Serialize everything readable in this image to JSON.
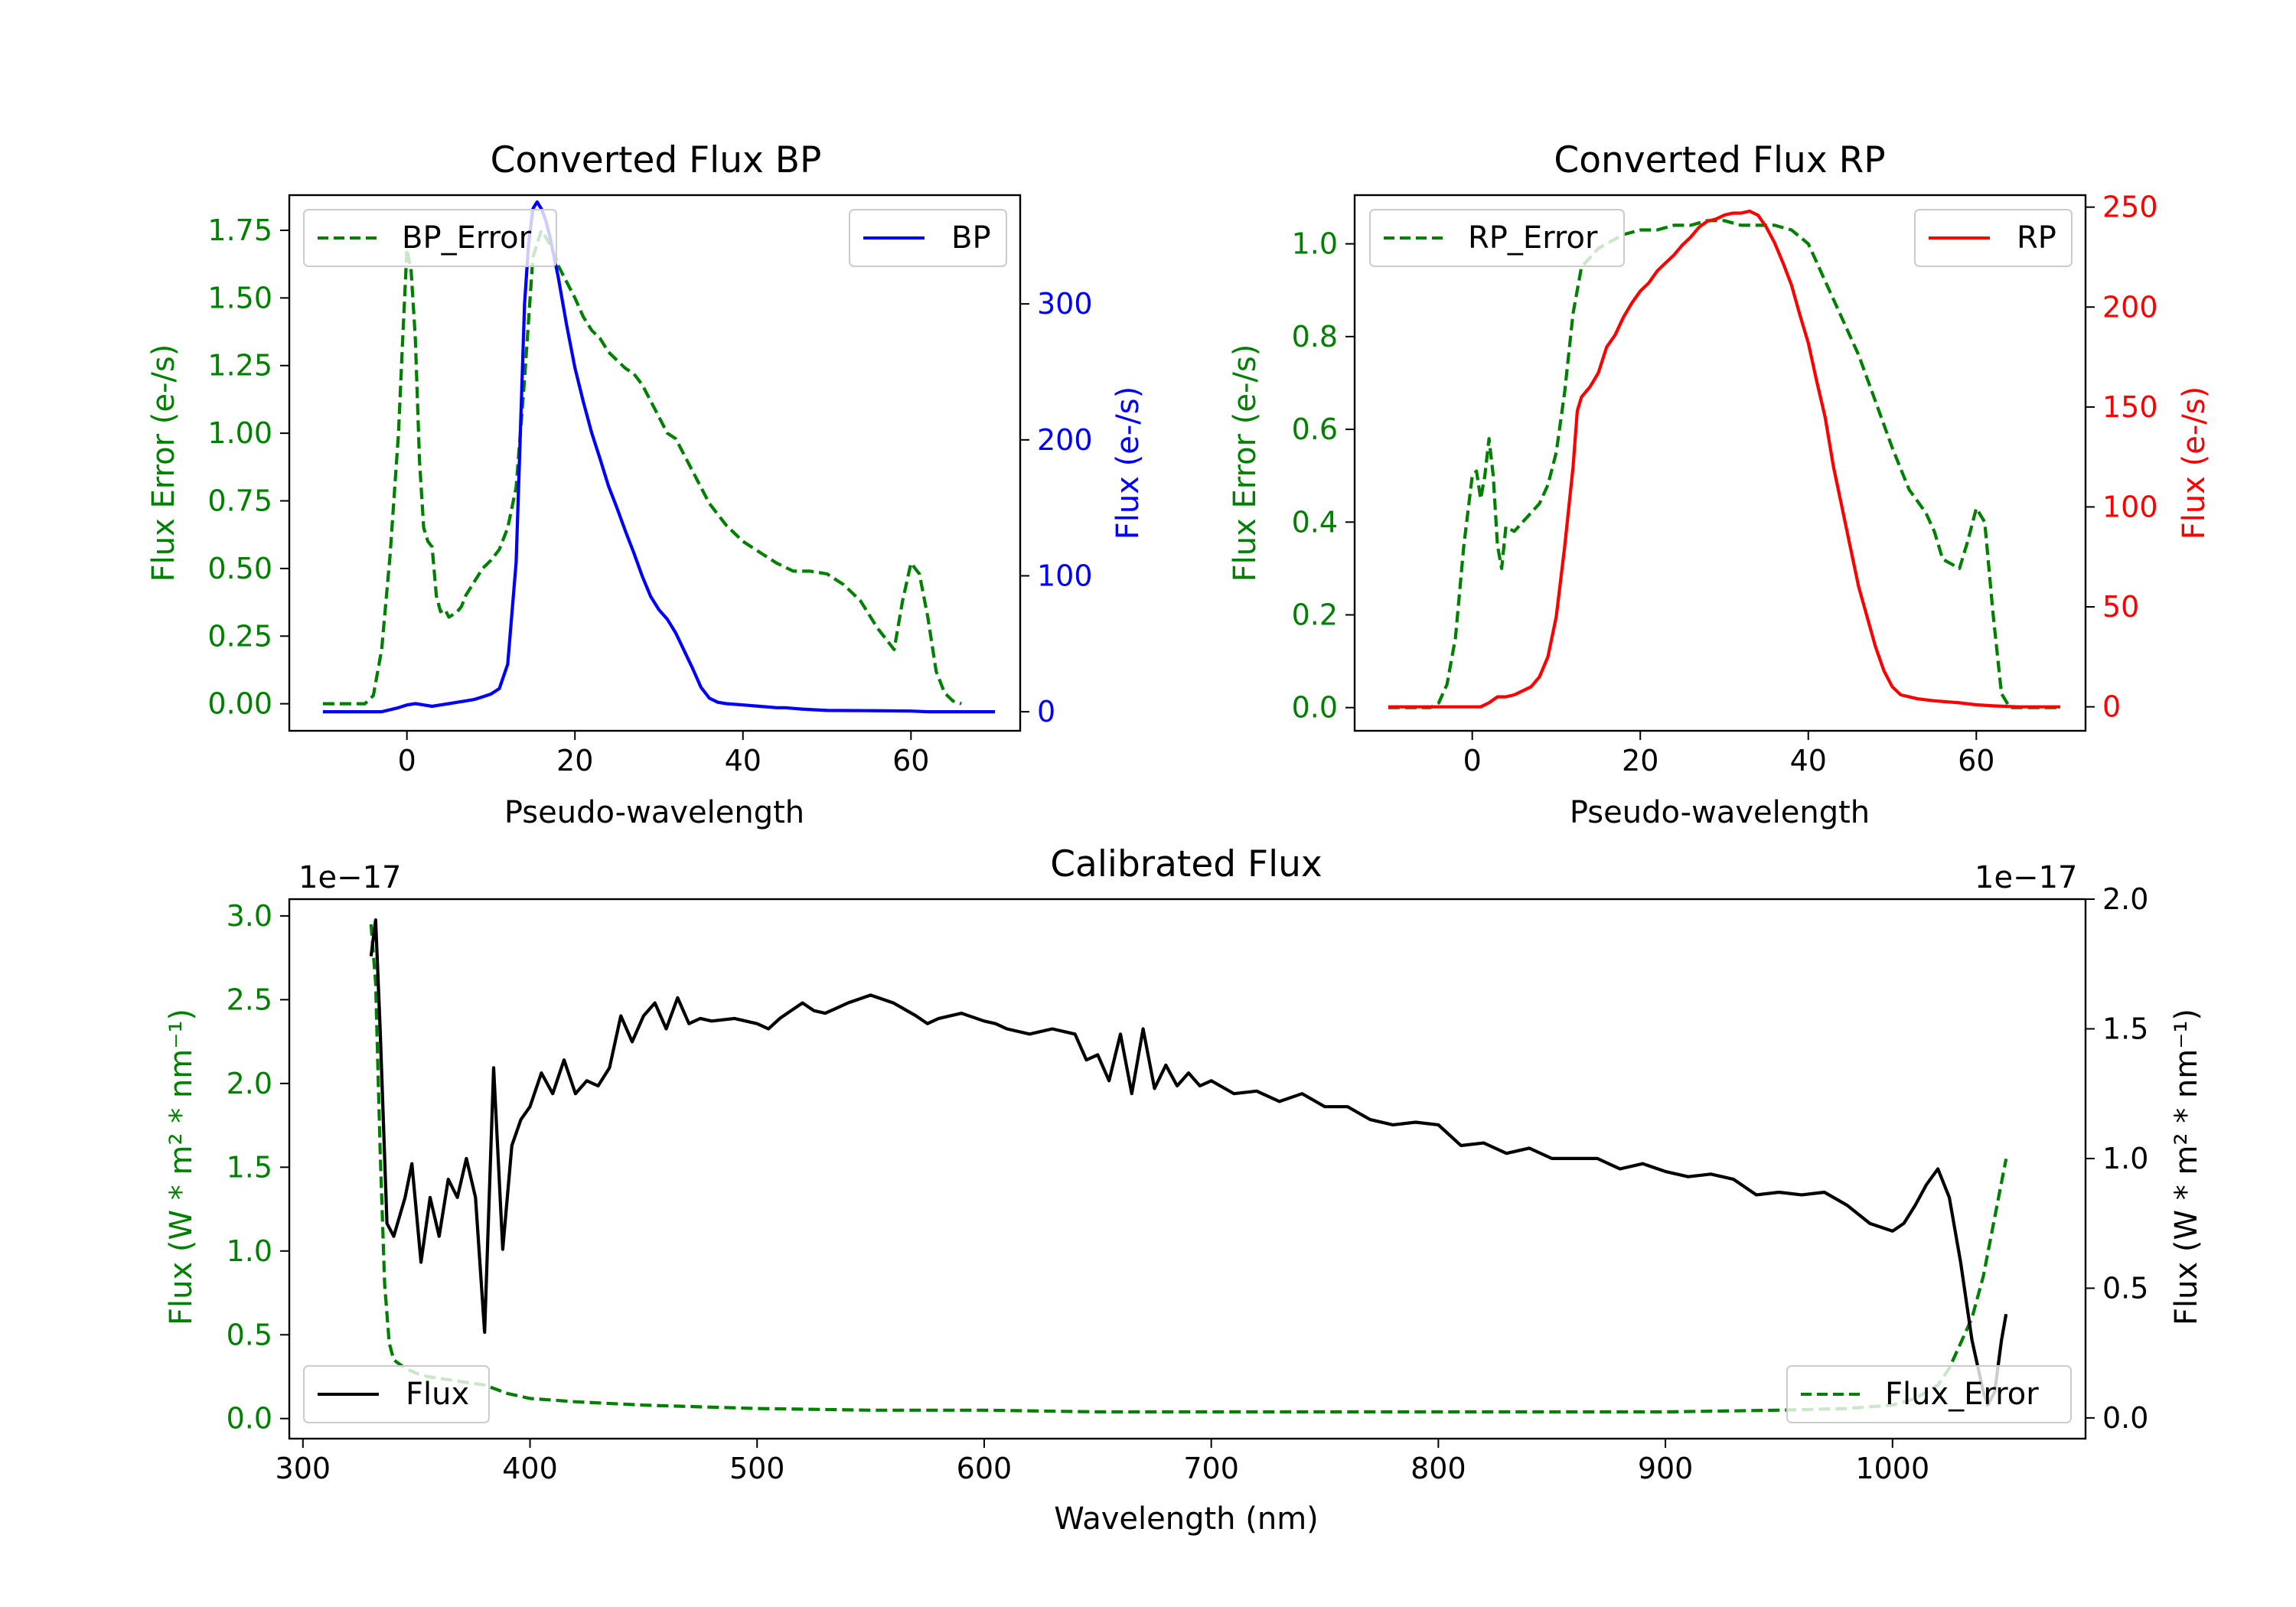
{
  "figure": {
    "type": "matplotlib-figure",
    "panel_count": 3
  },
  "chart_data": [
    {
      "id": "bp",
      "type": "line",
      "title": "Converted Flux BP",
      "xlabel": "Pseudo-wavelength",
      "ylabel_left": "Flux Error (e-/s)",
      "ylabel_right": "Flux (e-/s)",
      "xlim": [
        -14,
        73
      ],
      "ylim_left": [
        -0.1,
        1.88
      ],
      "ylim_right": [
        -14,
        380
      ],
      "xticks": [
        0,
        20,
        40,
        60
      ],
      "xtick_labels": [
        "0",
        "20",
        "40",
        "60"
      ],
      "yticks_left": [
        0,
        0.25,
        0.5,
        0.75,
        1.0,
        1.25,
        1.5,
        1.75
      ],
      "ytick_labels_left": [
        "0.00",
        "0.25",
        "0.50",
        "0.75",
        "1.00",
        "1.25",
        "1.50",
        "1.75"
      ],
      "yticks_right": [
        0,
        100,
        200,
        300
      ],
      "ytick_labels_right": [
        "0",
        "100",
        "200",
        "300"
      ],
      "left_color": "#008000",
      "right_color": "#0000ff",
      "series": [
        {
          "name": "BP_Error",
          "axis": "left",
          "color": "#008000",
          "style": "dashed",
          "legend_loc": "upper-left",
          "x": [
            -10,
            -5,
            -4,
            -3,
            -2,
            -1,
            -0.5,
            0,
            0.5,
            1,
            1.5,
            2,
            2.5,
            3,
            3.5,
            4,
            4.5,
            5,
            5.5,
            6,
            6.5,
            7,
            8,
            9,
            10,
            11,
            12,
            13,
            14,
            15,
            16,
            17,
            18,
            19,
            20,
            21,
            22,
            23,
            24,
            25,
            26,
            27,
            28,
            29,
            30,
            31,
            32,
            33,
            34,
            35,
            36,
            38,
            40,
            42,
            44,
            46,
            48,
            50,
            52,
            54,
            56,
            57,
            58,
            59,
            60,
            61,
            62,
            63,
            64,
            65,
            66
          ],
          "values": [
            0,
            0,
            0.03,
            0.2,
            0.55,
            1.0,
            1.35,
            1.68,
            1.6,
            1.35,
            0.9,
            0.65,
            0.6,
            0.58,
            0.4,
            0.34,
            0.35,
            0.32,
            0.33,
            0.34,
            0.36,
            0.4,
            0.45,
            0.5,
            0.53,
            0.57,
            0.65,
            0.8,
            1.2,
            1.65,
            1.75,
            1.7,
            1.62,
            1.56,
            1.5,
            1.43,
            1.38,
            1.35,
            1.3,
            1.27,
            1.24,
            1.22,
            1.18,
            1.12,
            1.06,
            1.0,
            0.98,
            0.92,
            0.86,
            0.8,
            0.74,
            0.66,
            0.6,
            0.56,
            0.52,
            0.49,
            0.49,
            0.48,
            0.44,
            0.38,
            0.28,
            0.24,
            0.2,
            0.38,
            0.52,
            0.48,
            0.32,
            0.12,
            0.04,
            0.01,
            0
          ]
        },
        {
          "name": "BP",
          "axis": "right",
          "color": "#0000ff",
          "style": "solid",
          "legend_loc": "upper-right",
          "x": [
            -10,
            -6,
            -3,
            -1,
            0,
            1,
            2,
            3,
            4,
            5,
            6,
            7,
            8,
            9,
            10,
            11,
            12,
            13,
            14,
            14.5,
            15,
            15.5,
            16,
            16.5,
            17,
            18,
            19,
            20,
            21,
            22,
            23,
            24,
            25,
            26,
            27,
            28,
            29,
            30,
            31,
            32,
            33,
            34,
            35,
            36,
            37,
            38,
            40,
            42,
            44,
            45,
            47,
            50,
            55,
            60,
            62,
            65,
            70
          ],
          "values": [
            0,
            0,
            0,
            3,
            5,
            6,
            5,
            4,
            5,
            6,
            7,
            8,
            9,
            11,
            13,
            17,
            35,
            110,
            300,
            345,
            370,
            375,
            370,
            362,
            350,
            320,
            285,
            253,
            228,
            205,
            186,
            166,
            150,
            133,
            117,
            100,
            85,
            75,
            68,
            58,
            45,
            32,
            18,
            10,
            7,
            6,
            5,
            4,
            3,
            3,
            2,
            1,
            0.8,
            0.5,
            0,
            0,
            0
          ]
        }
      ]
    },
    {
      "id": "rp",
      "type": "line",
      "title": "Converted Flux RP",
      "xlabel": "Pseudo-wavelength",
      "ylabel_left": "Flux Error (e-/s)",
      "ylabel_right": "Flux (e-/s)",
      "xlim": [
        -14,
        73
      ],
      "ylim_left": [
        -0.05,
        1.105
      ],
      "ylim_right": [
        -12,
        256
      ],
      "xticks": [
        0,
        20,
        40,
        60
      ],
      "xtick_labels": [
        "0",
        "20",
        "40",
        "60"
      ],
      "yticks_left": [
        0,
        0.2,
        0.4,
        0.6,
        0.8,
        1.0
      ],
      "ytick_labels_left": [
        "0.0",
        "0.2",
        "0.4",
        "0.6",
        "0.8",
        "1.0"
      ],
      "yticks_right": [
        0,
        50,
        100,
        150,
        200,
        250
      ],
      "ytick_labels_right": [
        "0",
        "50",
        "100",
        "150",
        "200",
        "250"
      ],
      "left_color": "#008000",
      "right_color": "#ff0000",
      "series": [
        {
          "name": "RP_Error",
          "axis": "left",
          "color": "#008000",
          "style": "dashed",
          "legend_loc": "upper-left",
          "x": [
            -10,
            -5,
            -4,
            -3,
            -2,
            -1,
            0,
            0.5,
            1,
            1.5,
            2,
            2.5,
            3,
            3.5,
            4,
            5,
            6,
            7,
            8,
            9,
            10,
            11,
            12,
            13,
            14,
            15,
            16,
            18,
            20,
            22,
            24,
            26,
            28,
            30,
            32,
            34,
            36,
            38,
            40,
            42,
            44,
            46,
            48,
            50,
            52,
            54,
            55,
            56,
            57,
            58,
            59,
            60,
            61,
            62,
            63,
            64,
            65,
            70
          ],
          "values": [
            0,
            0,
            0.01,
            0.05,
            0.15,
            0.35,
            0.5,
            0.51,
            0.45,
            0.5,
            0.58,
            0.5,
            0.35,
            0.3,
            0.39,
            0.38,
            0.4,
            0.42,
            0.44,
            0.48,
            0.55,
            0.68,
            0.85,
            0.95,
            0.97,
            0.99,
            1.0,
            1.02,
            1.03,
            1.03,
            1.04,
            1.04,
            1.05,
            1.05,
            1.04,
            1.04,
            1.04,
            1.03,
            1.0,
            0.92,
            0.84,
            0.76,
            0.66,
            0.56,
            0.47,
            0.42,
            0.38,
            0.32,
            0.31,
            0.3,
            0.36,
            0.43,
            0.4,
            0.2,
            0.03,
            0,
            0,
            0
          ]
        },
        {
          "name": "RP",
          "axis": "right",
          "color": "#ff0000",
          "style": "solid",
          "legend_loc": "upper-right",
          "x": [
            -10,
            -5,
            0,
            1,
            2,
            3,
            4,
            5,
            6,
            7,
            8,
            9,
            10,
            11,
            12,
            12.5,
            13,
            14,
            15,
            16,
            17,
            18,
            19,
            20,
            21,
            22,
            23,
            24,
            25,
            26,
            27,
            28,
            29,
            30,
            31,
            32,
            33,
            34,
            35,
            36,
            37,
            38,
            39,
            40,
            41,
            42,
            43,
            44,
            45,
            46,
            47,
            48,
            49,
            50,
            51,
            52,
            53,
            55,
            58,
            60,
            62,
            65,
            70
          ],
          "values": [
            0,
            0,
            0,
            0,
            2,
            5,
            5,
            6,
            8,
            10,
            15,
            25,
            45,
            80,
            120,
            148,
            155,
            160,
            167,
            180,
            186,
            195,
            202,
            208,
            212,
            218,
            222,
            226,
            231,
            235,
            240,
            243,
            244,
            246,
            247,
            247,
            248,
            246,
            240,
            232,
            222,
            211,
            196,
            182,
            163,
            145,
            120,
            100,
            80,
            60,
            45,
            30,
            18,
            10,
            6,
            5,
            4,
            3,
            2,
            1,
            0.5,
            0,
            0
          ]
        }
      ]
    },
    {
      "id": "calibrated",
      "type": "line",
      "title": "Calibrated Flux",
      "xlabel": "Wavelength (nm)",
      "ylabel_left": "Flux (W * m² * nm⁻¹)",
      "ylabel_right": "Flux (W * m² * nm⁻¹)",
      "offset_left": "1e−17",
      "offset_right": "1e−17",
      "xlim": [
        294,
        1085
      ],
      "ylim_left": [
        -0.12,
        3.1
      ],
      "ylim_right": [
        -0.08,
        2.0
      ],
      "xticks": [
        300,
        400,
        500,
        600,
        700,
        800,
        900,
        1000
      ],
      "xtick_labels": [
        "300",
        "400",
        "500",
        "600",
        "700",
        "800",
        "900",
        "1000"
      ],
      "yticks_left": [
        0,
        0.5,
        1.0,
        1.5,
        2.0,
        2.5,
        3.0
      ],
      "ytick_labels_left": [
        "0.0",
        "0.5",
        "1.0",
        "1.5",
        "2.0",
        "2.5",
        "3.0"
      ],
      "yticks_right": [
        0,
        0.5,
        1.0,
        1.5,
        2.0
      ],
      "ytick_labels_right": [
        "0.0",
        "0.5",
        "1.0",
        "1.5",
        "2.0"
      ],
      "left_color": "#008000",
      "right_color": "#000000",
      "series": [
        {
          "name": "Flux_Error",
          "axis": "left",
          "color": "#008000",
          "style": "dashed",
          "legend_loc": "lower-right",
          "x": [
            330,
            332,
            334,
            336,
            338,
            340,
            345,
            350,
            355,
            360,
            370,
            380,
            390,
            400,
            420,
            450,
            500,
            550,
            600,
            650,
            700,
            750,
            800,
            850,
            900,
            950,
            980,
            1000,
            1010,
            1020,
            1025,
            1030,
            1035,
            1040,
            1045,
            1050
          ],
          "values": [
            2.95,
            2.6,
            1.6,
            0.8,
            0.45,
            0.35,
            0.3,
            0.27,
            0.25,
            0.24,
            0.22,
            0.2,
            0.15,
            0.12,
            0.1,
            0.08,
            0.06,
            0.05,
            0.05,
            0.04,
            0.04,
            0.04,
            0.04,
            0.04,
            0.04,
            0.05,
            0.06,
            0.08,
            0.12,
            0.2,
            0.3,
            0.45,
            0.6,
            0.85,
            1.2,
            1.55
          ]
        },
        {
          "name": "Flux",
          "axis": "right",
          "color": "#000000",
          "style": "solid",
          "legend_loc": "lower-left",
          "x": [
            330,
            332,
            334,
            337,
            340,
            345,
            348,
            352,
            356,
            360,
            364,
            368,
            372,
            376,
            380,
            384,
            388,
            392,
            396,
            400,
            405,
            410,
            415,
            420,
            425,
            430,
            435,
            440,
            445,
            450,
            455,
            460,
            465,
            470,
            475,
            480,
            490,
            500,
            505,
            510,
            515,
            520,
            525,
            530,
            535,
            540,
            550,
            560,
            570,
            575,
            580,
            590,
            600,
            605,
            610,
            620,
            630,
            640,
            645,
            650,
            655,
            660,
            665,
            670,
            675,
            680,
            685,
            690,
            695,
            700,
            710,
            720,
            730,
            740,
            750,
            760,
            770,
            780,
            790,
            800,
            810,
            820,
            830,
            840,
            850,
            860,
            870,
            880,
            890,
            900,
            910,
            920,
            930,
            940,
            950,
            960,
            970,
            980,
            990,
            1000,
            1005,
            1010,
            1015,
            1020,
            1025,
            1030,
            1035,
            1040,
            1042,
            1045,
            1048,
            1050
          ],
          "values": [
            1.78,
            1.92,
            1.5,
            0.75,
            0.7,
            0.85,
            0.98,
            0.6,
            0.85,
            0.7,
            0.92,
            0.85,
            1.0,
            0.85,
            0.33,
            1.35,
            0.65,
            1.05,
            1.15,
            1.2,
            1.33,
            1.25,
            1.38,
            1.25,
            1.3,
            1.28,
            1.35,
            1.55,
            1.45,
            1.55,
            1.6,
            1.5,
            1.62,
            1.52,
            1.54,
            1.53,
            1.54,
            1.52,
            1.5,
            1.54,
            1.57,
            1.6,
            1.57,
            1.56,
            1.58,
            1.6,
            1.63,
            1.6,
            1.55,
            1.52,
            1.54,
            1.56,
            1.53,
            1.52,
            1.5,
            1.48,
            1.5,
            1.48,
            1.38,
            1.4,
            1.3,
            1.48,
            1.25,
            1.5,
            1.27,
            1.36,
            1.28,
            1.33,
            1.28,
            1.3,
            1.25,
            1.26,
            1.22,
            1.25,
            1.2,
            1.2,
            1.15,
            1.13,
            1.14,
            1.13,
            1.05,
            1.06,
            1.02,
            1.04,
            1.0,
            1.0,
            1.0,
            0.96,
            0.98,
            0.95,
            0.93,
            0.94,
            0.92,
            0.86,
            0.87,
            0.86,
            0.87,
            0.82,
            0.75,
            0.72,
            0.75,
            0.82,
            0.9,
            0.96,
            0.85,
            0.6,
            0.3,
            0.1,
            0.05,
            0.1,
            0.3,
            0.4
          ]
        }
      ]
    }
  ]
}
